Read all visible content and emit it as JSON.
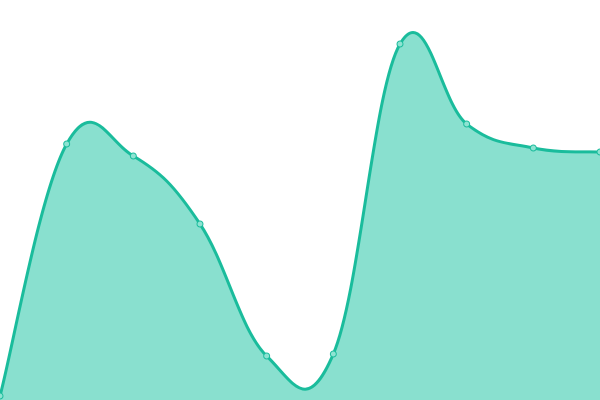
{
  "chart_data": {
    "type": "area",
    "title": "",
    "xlabel": "",
    "ylabel": "",
    "x": [
      0,
      1,
      2,
      3,
      4,
      5,
      6,
      7,
      8,
      9
    ],
    "series": [
      {
        "values": [
          1,
          64,
          61,
          44,
          11,
          11.5,
          89,
          69,
          63,
          62
        ]
      }
    ],
    "xlim": [
      0,
      9
    ],
    "ylim": [
      0,
      100
    ],
    "grid": false,
    "axes_visible": false,
    "smooth": true,
    "colors": {
      "line": "#1abc9c",
      "fill": "#89e0cf",
      "marker_fill": "#8ee3d2",
      "marker_stroke": "#1abc9c"
    }
  }
}
